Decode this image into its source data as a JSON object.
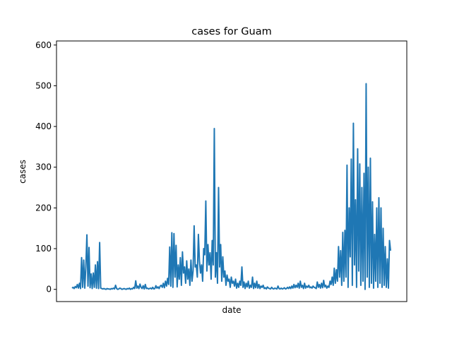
{
  "chart_data": {
    "type": "line",
    "title": "cases for Guam",
    "xlabel": "date",
    "ylabel": "cases",
    "ylim": [
      -30,
      610
    ],
    "yticks": [
      0,
      100,
      200,
      300,
      400,
      500,
      600
    ],
    "ytick_labels": [
      "0",
      "100",
      "200",
      "300",
      "400",
      "500",
      "600"
    ],
    "x_ticks_shown": false,
    "grid": false,
    "legend": "none",
    "series": [
      {
        "color": "#1f77b4",
        "values": [
          3,
          5,
          2,
          7,
          4,
          12,
          3,
          15,
          2,
          78,
          5,
          72,
          3,
          55,
          134,
          8,
          103,
          4,
          38,
          2,
          40,
          5,
          60,
          3,
          68,
          2,
          115,
          3,
          2,
          1,
          2,
          1,
          0,
          2,
          1,
          1,
          0,
          2,
          1,
          3,
          1,
          10,
          2,
          0,
          1,
          3,
          2,
          0,
          1,
          2,
          1,
          0,
          2,
          1,
          3,
          0,
          2,
          1,
          5,
          2,
          21,
          3,
          8,
          2,
          13,
          5,
          2,
          9,
          1,
          12,
          2,
          3,
          1,
          2,
          3,
          1,
          5,
          1,
          2,
          9,
          3,
          6,
          2,
          8,
          10,
          5,
          15,
          4,
          20,
          8,
          27,
          12,
          104,
          8,
          139,
          5,
          137,
          30,
          108,
          6,
          60,
          25,
          78,
          10,
          92,
          40,
          55,
          15,
          70,
          25,
          50,
          10,
          72,
          20,
          45,
          156,
          55,
          60,
          30,
          135,
          70,
          40,
          60,
          20,
          100,
          85,
          217,
          45,
          110,
          60,
          90,
          25,
          120,
          60,
          395,
          30,
          90,
          15,
          250,
          55,
          110,
          20,
          80,
          30,
          45,
          10,
          35,
          20,
          25,
          5,
          30,
          15,
          20,
          8,
          25,
          3,
          15,
          5,
          20,
          10,
          55,
          5,
          18,
          2,
          15,
          6,
          20,
          3,
          10,
          5,
          30,
          2,
          15,
          4,
          20,
          3,
          12,
          2,
          8,
          5,
          10,
          2,
          4,
          1,
          6,
          3,
          2,
          1,
          5,
          2,
          1,
          3,
          2,
          1,
          8,
          2,
          1,
          3,
          1,
          2,
          4,
          1,
          2,
          5,
          2,
          6,
          2,
          8,
          3,
          12,
          4,
          10,
          5,
          15,
          3,
          20,
          5,
          10,
          2,
          15,
          3,
          8,
          5,
          10,
          4,
          6,
          3,
          8,
          5,
          4,
          2,
          18,
          5,
          12,
          3,
          15,
          4,
          22,
          6,
          10,
          3,
          8,
          5,
          20,
          12,
          30,
          10,
          52,
          15,
          48,
          20,
          105,
          30,
          95,
          10,
          140,
          20,
          145,
          30,
          305,
          5,
          200,
          80,
          320,
          10,
          408,
          60,
          220,
          5,
          345,
          45,
          308,
          10,
          250,
          20,
          285,
          0,
          505,
          30,
          300,
          5,
          322,
          15,
          215,
          3,
          135,
          20,
          200,
          5,
          225,
          15,
          200,
          5,
          150,
          10,
          105,
          5,
          75,
          3,
          120,
          95
        ]
      }
    ]
  }
}
